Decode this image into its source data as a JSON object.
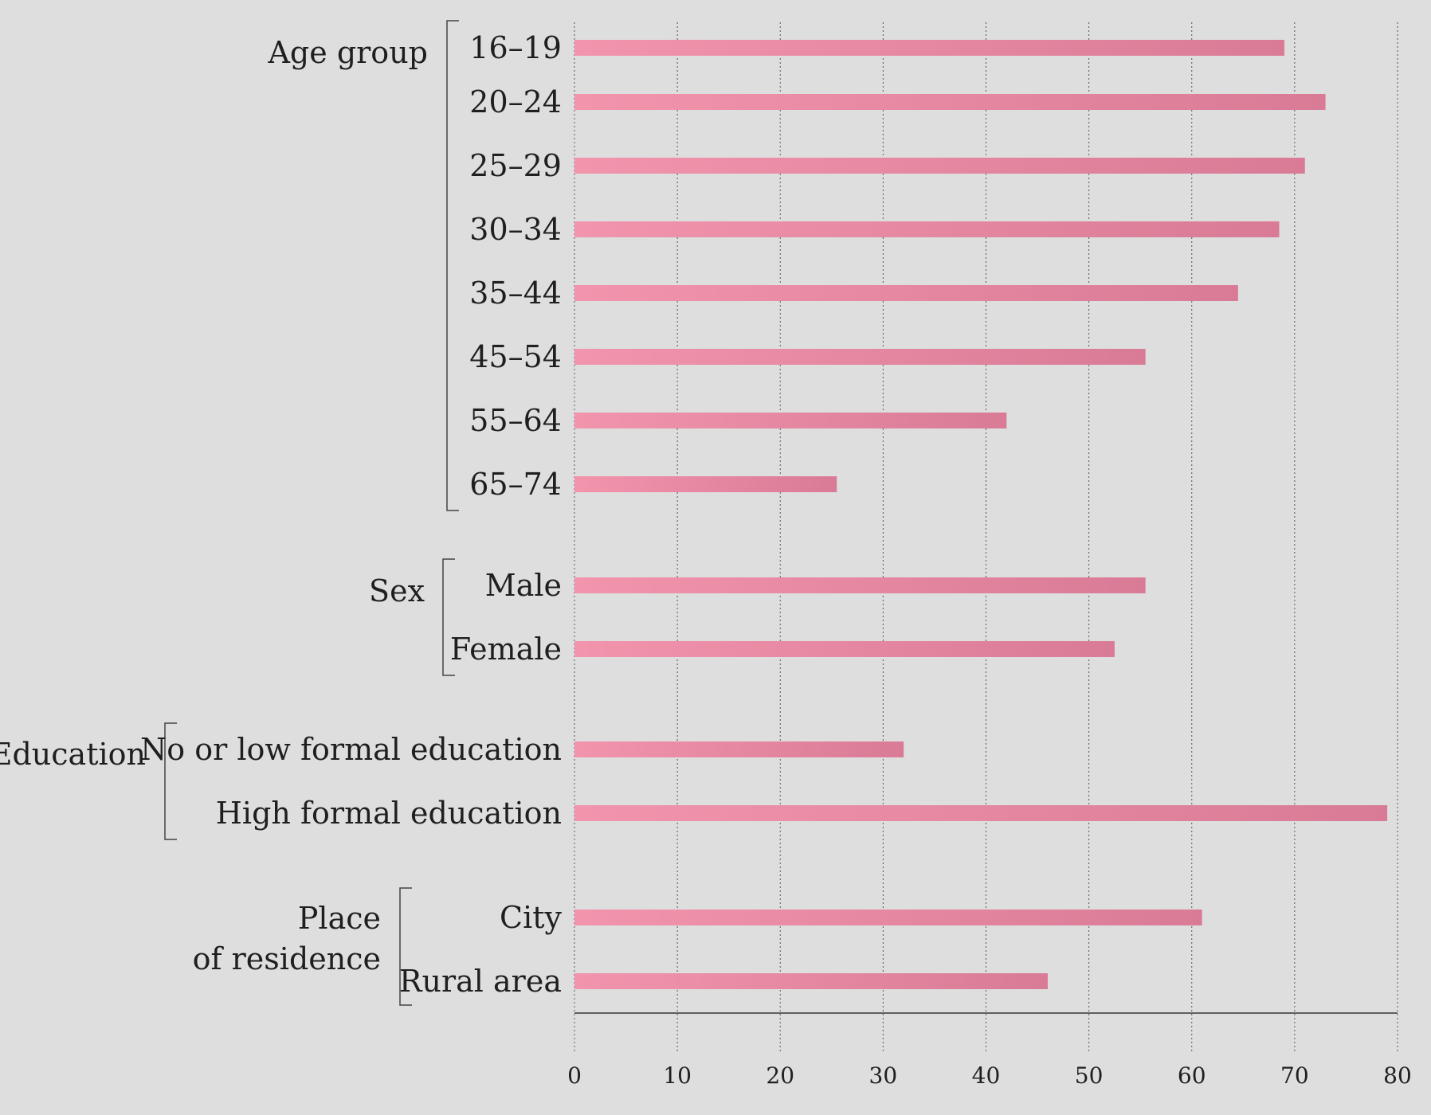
{
  "chart_data": {
    "type": "bar",
    "orientation": "horizontal",
    "xlim": [
      0,
      80
    ],
    "xticks": [
      0,
      10,
      20,
      30,
      40,
      50,
      60,
      70,
      80
    ],
    "grid": "vertical dotted",
    "bar_color_start": "#f294ac",
    "bar_color_end": "#d97b96",
    "groups": [
      {
        "name_lines": [
          "Age group"
        ],
        "categories": [
          "16–19",
          "20–24",
          "25–29",
          "30–34",
          "35–44",
          "45–54",
          "55–64",
          "65–74"
        ],
        "values": [
          69,
          73,
          71,
          68.5,
          64.5,
          55.5,
          42,
          25.5
        ]
      },
      {
        "name_lines": [
          "Sex"
        ],
        "categories": [
          "Male",
          "Female"
        ],
        "values": [
          55.5,
          52.5
        ]
      },
      {
        "name_lines": [
          "Education"
        ],
        "categories": [
          "No or low formal education",
          "High formal education"
        ],
        "values": [
          32,
          79
        ]
      },
      {
        "name_lines": [
          "Place",
          "of residence"
        ],
        "categories": [
          "City",
          "Rural area"
        ],
        "values": [
          61,
          46
        ]
      }
    ]
  }
}
